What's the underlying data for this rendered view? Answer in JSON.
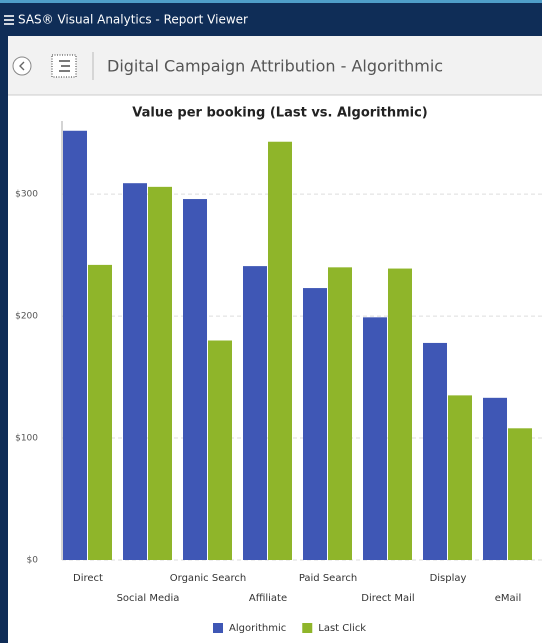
{
  "header": {
    "title": "SAS® Visual Analytics - Report Viewer"
  },
  "toolbar": {
    "report_title": "Digital Campaign Attribution - Algorithmic"
  },
  "chart_data": {
    "type": "bar",
    "title": "Value per booking (Last vs. Algorithmic)",
    "categories": [
      "Direct",
      "Social Media",
      "Organic Search",
      "Affiliate",
      "Paid Search",
      "Direct Mail",
      "Display",
      "eMail"
    ],
    "series": [
      {
        "name": "Algorithmic",
        "color": "#3f57b5",
        "values": [
          352,
          309,
          296,
          241,
          223,
          199,
          178,
          133
        ]
      },
      {
        "name": "Last Click",
        "color": "#8fb52a",
        "values": [
          242,
          306,
          180,
          343,
          240,
          239,
          135,
          108
        ]
      }
    ],
    "ylim": [
      0,
      360
    ],
    "yticks": [
      {
        "value": 0,
        "label": "$0"
      },
      {
        "value": 100,
        "label": "$100"
      },
      {
        "value": 200,
        "label": "$200"
      },
      {
        "value": 300,
        "label": "$300"
      }
    ],
    "grid": true,
    "legend": "bottom"
  }
}
